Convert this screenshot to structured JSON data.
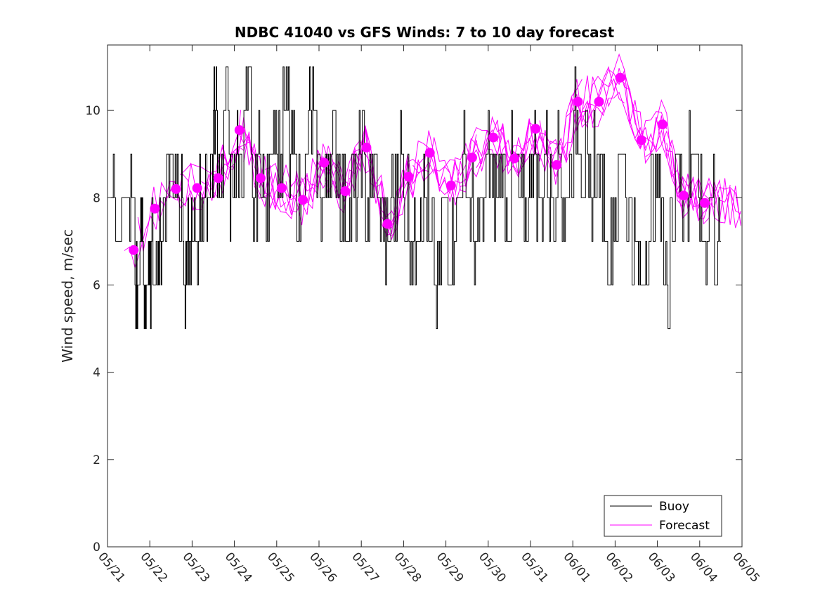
{
  "chart_data": {
    "type": "line",
    "title": "NDBC 41040 vs GFS Winds: 7 to 10 day forecast",
    "xlabel": "",
    "ylabel": "Wind speed, m/sec",
    "x_ticks": [
      "05/21",
      "05/22",
      "05/23",
      "05/24",
      "05/25",
      "05/26",
      "05/27",
      "05/28",
      "05/29",
      "05/30",
      "05/31",
      "06/01",
      "06/02",
      "06/03",
      "06/04",
      "06/05"
    ],
    "y_ticks": [
      "0",
      "2",
      "4",
      "6",
      "8",
      "10"
    ],
    "xlim_days": [
      0,
      15
    ],
    "ylim": [
      0,
      11.5
    ],
    "grid": false,
    "legend": {
      "position": "bottom-right",
      "entries": [
        "Buoy",
        "Forecast"
      ]
    },
    "colors": {
      "buoy": "#000000",
      "forecast": "#ff00ff"
    },
    "series": [
      {
        "name": "Buoy",
        "style": "line",
        "color": "#000000",
        "x_days": [
          0.08,
          0.25,
          0.5,
          0.65,
          0.75,
          0.85,
          0.95,
          1.05,
          1.2,
          1.3,
          1.4,
          1.55,
          1.7,
          1.8,
          1.9,
          2.0,
          2.15,
          2.3,
          2.4,
          2.5,
          2.6,
          2.75,
          2.9,
          3.0,
          3.1,
          3.25,
          3.4,
          3.55,
          3.7,
          3.85,
          4.0,
          4.15,
          4.3,
          4.45,
          4.6,
          4.75,
          4.9,
          5.05,
          5.2,
          5.35,
          5.5,
          5.65,
          5.8,
          5.95,
          6.1,
          6.25,
          6.4,
          6.55,
          6.7,
          6.85,
          7.0,
          7.15,
          7.3,
          7.45,
          7.6,
          7.75,
          7.9,
          8.05,
          8.2,
          8.35,
          8.5,
          8.65,
          8.8,
          8.95,
          9.1,
          9.25,
          9.4,
          9.55,
          9.7,
          9.85,
          10.0,
          10.15,
          10.3,
          10.45,
          10.6,
          10.75,
          10.9,
          11.05,
          11.2,
          11.35,
          11.5,
          11.65,
          11.8,
          11.95,
          12.1,
          12.25,
          12.4,
          12.55,
          12.7,
          12.85,
          13.0,
          13.15,
          13.3,
          13.45,
          13.6,
          13.75,
          13.9,
          14.05,
          14.2,
          14.35
        ],
        "values": [
          8,
          8,
          8,
          6,
          7,
          6,
          6,
          7,
          7,
          8,
          9,
          9,
          8,
          6,
          7,
          7,
          8,
          8,
          9,
          10,
          9,
          10,
          8,
          9,
          9,
          10,
          8,
          9,
          8,
          10,
          9,
          10,
          9,
          8,
          9,
          10,
          9,
          8,
          9,
          9,
          8,
          8,
          8,
          9,
          8,
          9,
          8,
          7,
          8,
          9,
          8,
          7,
          8,
          8,
          7,
          6,
          8,
          7,
          8,
          9,
          8,
          7,
          8,
          9,
          8,
          9,
          8,
          9,
          8,
          8,
          9,
          8,
          9,
          8,
          9,
          8,
          9,
          10,
          9,
          8,
          9,
          8,
          7,
          8,
          9,
          8,
          7,
          6,
          7,
          8,
          8,
          6,
          8,
          9,
          8,
          9,
          8,
          7,
          8,
          7
        ]
      },
      {
        "name": "Forecast",
        "style": "markers",
        "color": "#ff00ff",
        "x_days": [
          0.62,
          1.12,
          1.62,
          2.12,
          2.62,
          3.12,
          3.62,
          4.12,
          4.62,
          5.12,
          5.62,
          6.12,
          6.62,
          7.12,
          7.62,
          8.12,
          8.62,
          9.12,
          9.62,
          10.12,
          10.62,
          11.12,
          11.62,
          12.12,
          12.62,
          13.12,
          13.62,
          14.12
        ],
        "values": [
          6.8,
          7.75,
          8.2,
          8.22,
          8.45,
          9.55,
          8.45,
          8.22,
          7.95,
          8.8,
          8.15,
          9.15,
          7.4,
          8.48,
          9.03,
          8.28,
          8.92,
          9.38,
          8.9,
          9.58,
          8.75,
          10.2,
          10.2,
          10.75,
          9.32,
          9.68,
          8.05,
          7.88
        ]
      }
    ]
  }
}
